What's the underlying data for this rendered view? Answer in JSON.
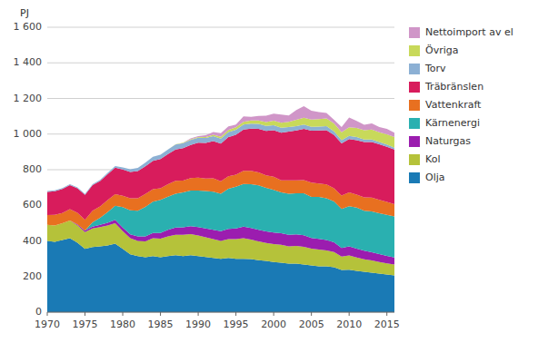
{
  "chart_data": {
    "type": "area",
    "stacked": true,
    "ylabel": "PJ",
    "x": [
      1970,
      1971,
      1972,
      1973,
      1974,
      1975,
      1976,
      1977,
      1978,
      1979,
      1980,
      1981,
      1982,
      1983,
      1984,
      1985,
      1986,
      1987,
      1988,
      1989,
      1990,
      1991,
      1992,
      1993,
      1994,
      1995,
      1996,
      1997,
      1998,
      1999,
      2000,
      2001,
      2002,
      2003,
      2004,
      2005,
      2006,
      2007,
      2008,
      2009,
      2010,
      2011,
      2012,
      2013,
      2014,
      2015,
      2016
    ],
    "series": [
      {
        "name": "Olja",
        "color": "#1a7ab5",
        "values": [
          400,
          395,
          405,
          415,
          390,
          355,
          365,
          370,
          375,
          385,
          355,
          325,
          315,
          308,
          315,
          308,
          315,
          320,
          315,
          320,
          315,
          310,
          305,
          300,
          305,
          300,
          300,
          298,
          292,
          288,
          282,
          278,
          272,
          272,
          267,
          262,
          257,
          257,
          252,
          237,
          238,
          232,
          227,
          222,
          217,
          212,
          207
        ]
      },
      {
        "name": "Kol",
        "color": "#b5c23a",
        "values": [
          90,
          92,
          95,
          100,
          98,
          95,
          105,
          108,
          112,
          115,
          100,
          90,
          85,
          90,
          100,
          105,
          110,
          115,
          120,
          118,
          115,
          110,
          105,
          100,
          105,
          110,
          115,
          110,
          105,
          100,
          100,
          100,
          98,
          100,
          100,
          95,
          95,
          90,
          85,
          75,
          80,
          75,
          70,
          68,
          65,
          62,
          60
        ]
      },
      {
        "name": "Naturgas",
        "color": "#9b1daf",
        "values": [
          0,
          0,
          0,
          0,
          5,
          8,
          10,
          12,
          15,
          18,
          20,
          22,
          25,
          28,
          30,
          32,
          38,
          40,
          42,
          45,
          48,
          50,
          52,
          55,
          58,
          60,
          65,
          65,
          65,
          65,
          65,
          65,
          65,
          65,
          65,
          60,
          60,
          58,
          55,
          48,
          52,
          50,
          48,
          46,
          44,
          42,
          40
        ]
      },
      {
        "name": "Kärnenergi",
        "color": "#2ab0b0",
        "values": [
          0,
          0,
          0,
          0,
          0,
          0,
          25,
          40,
          60,
          80,
          115,
          135,
          145,
          165,
          175,
          185,
          185,
          190,
          195,
          200,
          205,
          210,
          215,
          210,
          225,
          235,
          240,
          245,
          250,
          245,
          240,
          230,
          230,
          230,
          235,
          230,
          235,
          235,
          230,
          220,
          225,
          230,
          225,
          230,
          230,
          230,
          230
        ]
      },
      {
        "name": "Vattenkraft",
        "color": "#e87020",
        "values": [
          55,
          60,
          57,
          63,
          65,
          60,
          65,
          63,
          67,
          65,
          63,
          67,
          70,
          73,
          70,
          65,
          70,
          73,
          67,
          70,
          73,
          70,
          75,
          70,
          70,
          67,
          73,
          75,
          73,
          70,
          73,
          67,
          75,
          73,
          75,
          80,
          75,
          77,
          73,
          75,
          77,
          73,
          75,
          77,
          75,
          73,
          70
        ]
      },
      {
        "name": "Träbränslen",
        "color": "#d81c5c",
        "values": [
          130,
          132,
          135,
          135,
          138,
          140,
          143,
          143,
          145,
          148,
          148,
          148,
          152,
          155,
          160,
          165,
          170,
          175,
          182,
          186,
          195,
          200,
          208,
          212,
          220,
          224,
          232,
          238,
          244,
          250,
          262,
          268,
          274,
          280,
          287,
          292,
          298,
          305,
          300,
          293,
          300,
          306,
          310,
          312,
          312,
          310,
          306
        ]
      },
      {
        "name": "Torv",
        "color": "#8cb0d4",
        "values": [
          5,
          5,
          5,
          5,
          5,
          6,
          6,
          7,
          8,
          10,
          12,
          15,
          18,
          20,
          22,
          24,
          26,
          28,
          28,
          28,
          28,
          28,
          28,
          28,
          28,
          28,
          28,
          28,
          28,
          28,
          28,
          28,
          25,
          25,
          25,
          22,
          22,
          22,
          20,
          18,
          18,
          18,
          15,
          15,
          12,
          12,
          10
        ]
      },
      {
        "name": "Övriga",
        "color": "#c8d95a",
        "values": [
          0,
          0,
          0,
          0,
          0,
          0,
          0,
          0,
          0,
          0,
          0,
          0,
          0,
          0,
          0,
          0,
          0,
          2,
          3,
          4,
          5,
          6,
          8,
          10,
          12,
          14,
          16,
          18,
          20,
          22,
          25,
          28,
          30,
          35,
          38,
          40,
          42,
          44,
          45,
          44,
          48,
          50,
          52,
          55,
          55,
          58,
          60
        ]
      },
      {
        "name": "Nettoimport av el",
        "color": "#d096c8",
        "values": [
          0,
          0,
          0,
          0,
          0,
          0,
          0,
          0,
          0,
          0,
          0,
          0,
          0,
          0,
          0,
          0,
          0,
          0,
          0,
          5,
          5,
          10,
          15,
          20,
          20,
          15,
          30,
          20,
          25,
          35,
          40,
          45,
          35,
          55,
          65,
          50,
          40,
          30,
          20,
          30,
          55,
          40,
          30,
          35,
          30,
          30,
          25
        ]
      }
    ],
    "xlim": [
      1970,
      2016
    ],
    "xticks": [
      1970,
      1975,
      1980,
      1985,
      1990,
      1995,
      2000,
      2005,
      2010,
      2015
    ],
    "ylim": [
      0,
      1600
    ],
    "yticks": [
      0,
      200,
      400,
      600,
      800,
      {
        "value": 1000,
        "label": "1 000"
      },
      {
        "value": 1200,
        "label": "1 200"
      },
      {
        "value": 1400,
        "label": "1 400"
      },
      {
        "value": 1600,
        "label": "1 600"
      }
    ],
    "grid": "y",
    "legend": "right"
  }
}
